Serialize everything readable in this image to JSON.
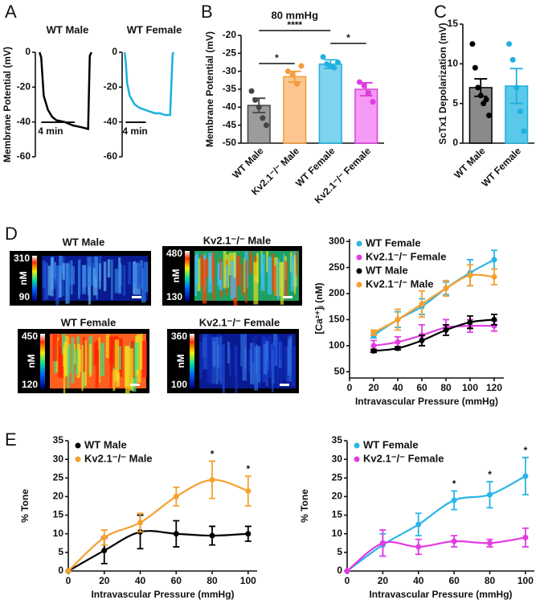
{
  "panel_labels": [
    "A",
    "B",
    "C",
    "D",
    "E"
  ],
  "images": [
    {
      "title": "WT Male",
      "max": "310",
      "min": "90",
      "unit": "nM"
    },
    {
      "title": "Kv2.1⁻/⁻ Male",
      "max": "480",
      "min": "130",
      "unit": "nM"
    },
    {
      "title": "WT Female",
      "max": "450",
      "min": "120",
      "unit": "nM"
    },
    {
      "title": "Kv2.1⁻/⁻ Female",
      "max": "360",
      "min": "100",
      "unit": "nM"
    }
  ],
  "chart_data": [
    {
      "type": "line",
      "title": "WT Male",
      "ylabel": "Membrane Potential (mV)",
      "color": "#000000",
      "x": [
        0,
        0.2,
        0.5,
        1,
        1.5,
        2,
        3,
        4,
        5,
        5.8,
        6,
        6.2
      ],
      "values": [
        0,
        -3,
        -25,
        -33,
        -37,
        -39,
        -40,
        -42,
        -43,
        -44,
        -2,
        0
      ],
      "xlim": [
        -0.5,
        6.6
      ],
      "ylim": [
        -60,
        0
      ],
      "yticks": [
        0,
        -20,
        -40,
        -60
      ],
      "scalebar": {
        "value": 4,
        "label": "4 min"
      }
    },
    {
      "type": "line",
      "title": "WT Female",
      "color": "#1ab0e0",
      "x": [
        0,
        0.2,
        0.5,
        1,
        2,
        3,
        4,
        5,
        6,
        7,
        8,
        9,
        9.5,
        9.7
      ],
      "values": [
        0,
        -5,
        -18,
        -25,
        -30,
        -32,
        -33,
        -34,
        -35,
        -35,
        -36,
        -36,
        -1,
        0
      ],
      "xlim": [
        -0.5,
        10
      ],
      "ylim": [
        -60,
        0
      ],
      "yticks": [
        0,
        -20,
        -40,
        -60
      ],
      "scalebar": {
        "value": 4,
        "label": "4 min"
      }
    },
    {
      "type": "bar",
      "ylabel": "Membrane Potential (mV)",
      "categories": [
        "WT Male",
        "Kv2.1⁻/⁻ Male",
        "WT Female",
        "Kv2.1⁻/⁻ Female"
      ],
      "values": [
        -39.5,
        -31.5,
        -28,
        -35
      ],
      "errors": [
        2,
        1.5,
        1.2,
        1.8
      ],
      "points": [
        [
          -35.5,
          -38,
          -40,
          -43,
          -45
        ],
        [
          -30,
          -31,
          -33.5,
          -28.5
        ],
        [
          -26,
          -28,
          -28.5,
          -29,
          -27.5
        ],
        [
          -33,
          -34,
          -36,
          -38.5
        ]
      ],
      "colors": [
        "#9b9b9b",
        "#fbc68f",
        "#7fd3ef",
        "#f59af5"
      ],
      "edge_colors": [
        "#444444",
        "#f39c3a",
        "#1fb0e0",
        "#dd3fdd"
      ],
      "ylim": [
        -50,
        -20
      ],
      "yticks": [
        -20,
        -25,
        -30,
        -35,
        -40,
        -45,
        -50
      ],
      "annotations": [
        "80 mmHg",
        "****",
        "*",
        "*"
      ]
    },
    {
      "type": "bar",
      "ylabel": "ScTx1 Depolarization (mV)",
      "categories": [
        "WT Male",
        "WT Female"
      ],
      "values": [
        7,
        7.2
      ],
      "errors": [
        1.1,
        2.2
      ],
      "points": [
        [
          12.5,
          9.5,
          7,
          6,
          5,
          5.5,
          3.5
        ],
        [
          12.5,
          10.5,
          7,
          4,
          1.5
        ]
      ],
      "colors": [
        "#8a8a8a",
        "#5ac8e8"
      ],
      "edge_colors": [
        "#000000",
        "#1fb0e0"
      ],
      "ylim": [
        0,
        15
      ],
      "yticks": [
        0,
        5,
        10,
        15
      ]
    },
    {
      "type": "line",
      "xlabel": "Intravascular Pressure (mmHg)",
      "ylabel": "[Ca²⁺]ᵢ (nM)",
      "legend": "upper left",
      "x": [
        20,
        40,
        60,
        80,
        100,
        120
      ],
      "series": [
        {
          "name": "WT Female",
          "color": "#29b6e6",
          "values": [
            120,
            150,
            175,
            210,
            240,
            265
          ],
          "errors": [
            5,
            15,
            15,
            12,
            25,
            18
          ]
        },
        {
          "name": "Kv2.1⁻/⁻ Female",
          "color": "#e23ce2",
          "values": [
            100,
            107,
            120,
            135,
            138,
            138
          ],
          "errors": [
            10,
            10,
            20,
            15,
            12,
            10
          ]
        },
        {
          "name": "WT Male",
          "color": "#000000",
          "values": [
            90,
            95,
            110,
            130,
            145,
            150
          ],
          "errors": [
            3,
            3,
            10,
            10,
            12,
            10
          ]
        },
        {
          "name": "Kv2.1⁻/⁻ Male",
          "color": "#f5a030",
          "values": [
            125,
            150,
            180,
            210,
            235,
            232
          ],
          "errors": [
            5,
            20,
            25,
            15,
            20,
            15
          ]
        }
      ],
      "xlim": [
        0,
        128
      ],
      "xticks": [
        0,
        20,
        40,
        60,
        80,
        100,
        120
      ],
      "ylim": [
        38,
        305
      ],
      "yticks": [
        50,
        100,
        150,
        200,
        250,
        300
      ]
    },
    {
      "type": "line",
      "xlabel": "Intravascular Pressure (mmHg)",
      "ylabel": "% Tone",
      "legend": "upper left",
      "x": [
        0,
        20,
        40,
        60,
        80,
        100
      ],
      "series": [
        {
          "name": "WT Male",
          "color": "#000000",
          "values": [
            0,
            5.5,
            10.5,
            10,
            9.5,
            10
          ],
          "errors": [
            0,
            3.5,
            4.5,
            3.5,
            2.5,
            2
          ]
        },
        {
          "name": "Kv2.1⁻/⁻ Male",
          "color": "#f5a030",
          "values": [
            0,
            9,
            13,
            20,
            24.5,
            21.5
          ],
          "errors": [
            0,
            2,
            2.5,
            2.5,
            5,
            4
          ]
        }
      ],
      "annotations": [
        {
          "x": 80,
          "text": "*"
        },
        {
          "x": 100,
          "text": "*"
        }
      ],
      "xlim": [
        0,
        105
      ],
      "xticks": [
        0,
        20,
        40,
        60,
        80,
        100
      ],
      "ylim": [
        0,
        35
      ],
      "yticks": [
        0,
        5,
        10,
        15,
        20,
        25,
        30,
        35
      ]
    },
    {
      "type": "line",
      "xlabel": "Intravascular Pressure (mmHg)",
      "ylabel": "% Tone",
      "legend": "upper left",
      "x": [
        0,
        20,
        40,
        60,
        80,
        100
      ],
      "series": [
        {
          "name": "WT Female",
          "color": "#29b6e6",
          "values": [
            0,
            7,
            12.5,
            19,
            20.5,
            25.5
          ],
          "errors": [
            0,
            3,
            3,
            2.5,
            3.5,
            5
          ]
        },
        {
          "name": "Kv2.1⁻/⁻ Female",
          "color": "#e23ce2",
          "values": [
            0,
            7.5,
            6.5,
            8,
            7.5,
            9
          ],
          "errors": [
            0,
            3.5,
            2,
            1.5,
            1,
            2.5
          ]
        }
      ],
      "annotations": [
        {
          "x": 60,
          "text": "*"
        },
        {
          "x": 80,
          "text": "*"
        },
        {
          "x": 100,
          "text": "*"
        }
      ],
      "xlim": [
        0,
        105
      ],
      "xticks": [
        0,
        20,
        40,
        60,
        80,
        100
      ],
      "ylim": [
        0,
        35
      ],
      "yticks": [
        0,
        5,
        10,
        15,
        20,
        25,
        30,
        35
      ]
    }
  ]
}
